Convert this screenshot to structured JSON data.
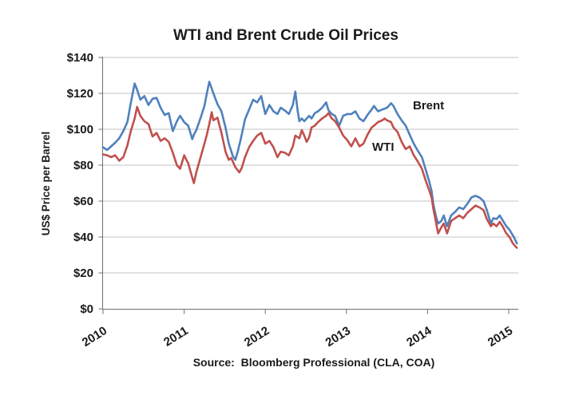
{
  "title": "WTI and Brent Crude Oil Prices",
  "source": "Source:  Bloomberg Professional (CLA, COA)",
  "y_axis": {
    "title": "US$ Price per Barrel"
  },
  "x_axis": {
    "tick_labels": [
      "2010",
      "2011",
      "2012",
      "2013",
      "2014",
      "2015"
    ]
  },
  "series_labels": {
    "brent": "Brent",
    "wti": "WTI"
  },
  "colors": {
    "brent": "#4f81bd",
    "wti": "#c0504d",
    "gridline": "#c3c3c3",
    "axis": "#6f6f6f",
    "text": "#1a1a1a"
  },
  "chart_data": {
    "type": "line",
    "title": "WTI and Brent Crude Oil Prices",
    "xlabel": "",
    "ylabel": "US$ Price per Barrel",
    "ylim": [
      0,
      140
    ],
    "xlim": [
      2010.0,
      2015.12
    ],
    "grid": "horizontal",
    "legend_position": "inline-annotations",
    "y_ticks": [
      {
        "value": 140,
        "label": "$140"
      },
      {
        "value": 120,
        "label": "$120"
      },
      {
        "value": 100,
        "label": "$100"
      },
      {
        "value": 80,
        "label": "$80"
      },
      {
        "value": 60,
        "label": "$60"
      },
      {
        "value": 40,
        "label": "$40"
      },
      {
        "value": 20,
        "label": "$20"
      },
      {
        "value": 0,
        "label": "$0"
      }
    ],
    "x_ticks": [
      {
        "value": 2010,
        "label": "2010"
      },
      {
        "value": 2011,
        "label": "2011"
      },
      {
        "value": 2012,
        "label": "2012"
      },
      {
        "value": 2013,
        "label": "2013"
      },
      {
        "value": 2014,
        "label": "2014"
      },
      {
        "value": 2015,
        "label": "2015"
      }
    ],
    "series": [
      {
        "name": "Brent",
        "color": "#4f81bd",
        "points": [
          [
            2010.0,
            90
          ],
          [
            2010.05,
            88.5
          ],
          [
            2010.1,
            90.5
          ],
          [
            2010.15,
            92.5
          ],
          [
            2010.2,
            95
          ],
          [
            2010.25,
            99
          ],
          [
            2010.3,
            104
          ],
          [
            2010.34,
            114
          ],
          [
            2010.39,
            125.5
          ],
          [
            2010.42,
            122
          ],
          [
            2010.46,
            116.5
          ],
          [
            2010.51,
            118.5
          ],
          [
            2010.56,
            113.5
          ],
          [
            2010.61,
            117
          ],
          [
            2010.66,
            117.5
          ],
          [
            2010.71,
            112
          ],
          [
            2010.76,
            108
          ],
          [
            2010.81,
            109
          ],
          [
            2010.86,
            99
          ],
          [
            2010.91,
            104.5
          ],
          [
            2010.95,
            107.5
          ],
          [
            2011.0,
            104
          ],
          [
            2011.05,
            102
          ],
          [
            2011.1,
            94.5
          ],
          [
            2011.12,
            97
          ],
          [
            2011.15,
            99.5
          ],
          [
            2011.2,
            106
          ],
          [
            2011.25,
            113
          ],
          [
            2011.28,
            120
          ],
          [
            2011.31,
            126.5
          ],
          [
            2011.36,
            120
          ],
          [
            2011.41,
            114
          ],
          [
            2011.46,
            110
          ],
          [
            2011.51,
            101
          ],
          [
            2011.55,
            92
          ],
          [
            2011.6,
            85
          ],
          [
            2011.63,
            83
          ],
          [
            2011.66,
            87.5
          ],
          [
            2011.7,
            95
          ],
          [
            2011.75,
            105.5
          ],
          [
            2011.8,
            111
          ],
          [
            2011.85,
            116.5
          ],
          [
            2011.9,
            115
          ],
          [
            2011.95,
            118.5
          ],
          [
            2012.0,
            108.5
          ],
          [
            2012.05,
            113.5
          ],
          [
            2012.1,
            110
          ],
          [
            2012.15,
            108.5
          ],
          [
            2012.19,
            112
          ],
          [
            2012.24,
            110.5
          ],
          [
            2012.29,
            108.5
          ],
          [
            2012.34,
            113.5
          ],
          [
            2012.37,
            121
          ],
          [
            2012.4,
            110
          ],
          [
            2012.42,
            104.5
          ],
          [
            2012.45,
            106
          ],
          [
            2012.48,
            104.5
          ],
          [
            2012.54,
            107.5
          ],
          [
            2012.57,
            106
          ],
          [
            2012.61,
            109
          ],
          [
            2012.65,
            110
          ],
          [
            2012.7,
            112
          ],
          [
            2012.75,
            115
          ],
          [
            2012.78,
            110.5
          ],
          [
            2012.82,
            108.5
          ],
          [
            2012.86,
            107.5
          ],
          [
            2012.91,
            102
          ],
          [
            2012.96,
            107.5
          ],
          [
            2013.01,
            108.5
          ],
          [
            2013.06,
            108.5
          ],
          [
            2013.11,
            110
          ],
          [
            2013.16,
            106
          ],
          [
            2013.21,
            104.5
          ],
          [
            2013.26,
            108
          ],
          [
            2013.31,
            111
          ],
          [
            2013.34,
            113
          ],
          [
            2013.39,
            110
          ],
          [
            2013.44,
            111
          ],
          [
            2013.5,
            112
          ],
          [
            2013.55,
            114.5
          ],
          [
            2013.58,
            113
          ],
          [
            2013.63,
            108.5
          ],
          [
            2013.68,
            105
          ],
          [
            2013.73,
            102
          ],
          [
            2013.78,
            97
          ],
          [
            2013.83,
            92
          ],
          [
            2013.88,
            88
          ],
          [
            2013.93,
            84.5
          ],
          [
            2013.98,
            77
          ],
          [
            2014.02,
            71
          ],
          [
            2014.05,
            65.5
          ],
          [
            2014.07,
            58.5
          ],
          [
            2014.1,
            52
          ],
          [
            2014.13,
            47.5
          ],
          [
            2014.17,
            49
          ],
          [
            2014.2,
            52
          ],
          [
            2014.24,
            46
          ],
          [
            2014.29,
            52
          ],
          [
            2014.34,
            54
          ],
          [
            2014.39,
            56.5
          ],
          [
            2014.44,
            55.5
          ],
          [
            2014.49,
            58.5
          ],
          [
            2014.54,
            62
          ],
          [
            2014.59,
            63
          ],
          [
            2014.64,
            62
          ],
          [
            2014.69,
            60
          ],
          [
            2014.73,
            55
          ],
          [
            2014.78,
            47.5
          ],
          [
            2014.81,
            50.5
          ],
          [
            2014.85,
            50
          ],
          [
            2014.89,
            52
          ],
          [
            2014.93,
            49
          ],
          [
            2014.97,
            46
          ],
          [
            2015.01,
            44
          ],
          [
            2015.05,
            41
          ],
          [
            2015.08,
            38.5
          ],
          [
            2015.1,
            36.5
          ]
        ]
      },
      {
        "name": "WTI",
        "color": "#c0504d",
        "points": [
          [
            2010.0,
            86
          ],
          [
            2010.05,
            85.5
          ],
          [
            2010.1,
            84.5
          ],
          [
            2010.15,
            85.5
          ],
          [
            2010.2,
            82.5
          ],
          [
            2010.25,
            84.5
          ],
          [
            2010.3,
            91
          ],
          [
            2010.34,
            98.5
          ],
          [
            2010.39,
            106
          ],
          [
            2010.42,
            112.5
          ],
          [
            2010.46,
            107.5
          ],
          [
            2010.51,
            104.5
          ],
          [
            2010.56,
            103
          ],
          [
            2010.61,
            96
          ],
          [
            2010.66,
            98
          ],
          [
            2010.71,
            93.5
          ],
          [
            2010.76,
            95
          ],
          [
            2010.81,
            93
          ],
          [
            2010.86,
            87
          ],
          [
            2010.91,
            80
          ],
          [
            2010.95,
            78
          ],
          [
            2011.0,
            85.5
          ],
          [
            2011.05,
            81
          ],
          [
            2011.1,
            73
          ],
          [
            2011.12,
            70
          ],
          [
            2011.15,
            76
          ],
          [
            2011.2,
            84
          ],
          [
            2011.25,
            92
          ],
          [
            2011.28,
            97
          ],
          [
            2011.31,
            103
          ],
          [
            2011.34,
            109.5
          ],
          [
            2011.36,
            105
          ],
          [
            2011.41,
            106.5
          ],
          [
            2011.46,
            98
          ],
          [
            2011.51,
            87.5
          ],
          [
            2011.55,
            83
          ],
          [
            2011.58,
            84
          ],
          [
            2011.63,
            79
          ],
          [
            2011.68,
            76
          ],
          [
            2011.71,
            78.5
          ],
          [
            2011.75,
            84.5
          ],
          [
            2011.8,
            90
          ],
          [
            2011.85,
            93.5
          ],
          [
            2011.9,
            96.5
          ],
          [
            2011.95,
            98
          ],
          [
            2012.0,
            92
          ],
          [
            2012.05,
            93.5
          ],
          [
            2012.1,
            90
          ],
          [
            2012.15,
            84.5
          ],
          [
            2012.19,
            87.5
          ],
          [
            2012.24,
            87
          ],
          [
            2012.29,
            85.5
          ],
          [
            2012.34,
            90.5
          ],
          [
            2012.37,
            96.5
          ],
          [
            2012.42,
            95
          ],
          [
            2012.45,
            99.5
          ],
          [
            2012.48,
            96.5
          ],
          [
            2012.51,
            93
          ],
          [
            2012.54,
            95.5
          ],
          [
            2012.57,
            101
          ],
          [
            2012.61,
            102
          ],
          [
            2012.65,
            104
          ],
          [
            2012.7,
            106
          ],
          [
            2012.75,
            107.5
          ],
          [
            2012.78,
            109
          ],
          [
            2012.82,
            106
          ],
          [
            2012.86,
            104.5
          ],
          [
            2012.91,
            101
          ],
          [
            2012.96,
            96.5
          ],
          [
            2013.01,
            94
          ],
          [
            2013.06,
            90.5
          ],
          [
            2013.11,
            95
          ],
          [
            2013.16,
            90.5
          ],
          [
            2013.21,
            92
          ],
          [
            2013.26,
            97
          ],
          [
            2013.31,
            101
          ],
          [
            2013.34,
            102
          ],
          [
            2013.39,
            104
          ],
          [
            2013.44,
            105
          ],
          [
            2013.47,
            106
          ],
          [
            2013.5,
            105
          ],
          [
            2013.55,
            104
          ],
          [
            2013.58,
            101
          ],
          [
            2013.63,
            98.5
          ],
          [
            2013.68,
            93
          ],
          [
            2013.73,
            89
          ],
          [
            2013.78,
            90.5
          ],
          [
            2013.83,
            85.5
          ],
          [
            2013.88,
            82
          ],
          [
            2013.93,
            78
          ],
          [
            2013.98,
            71
          ],
          [
            2014.02,
            66
          ],
          [
            2014.05,
            62
          ],
          [
            2014.07,
            56
          ],
          [
            2014.1,
            49
          ],
          [
            2014.13,
            42
          ],
          [
            2014.17,
            45.5
          ],
          [
            2014.2,
            47.5
          ],
          [
            2014.24,
            42
          ],
          [
            2014.29,
            49
          ],
          [
            2014.34,
            50.5
          ],
          [
            2014.39,
            52
          ],
          [
            2014.44,
            50.5
          ],
          [
            2014.49,
            53.5
          ],
          [
            2014.54,
            55.5
          ],
          [
            2014.59,
            57.5
          ],
          [
            2014.64,
            56.5
          ],
          [
            2014.69,
            55
          ],
          [
            2014.73,
            50
          ],
          [
            2014.78,
            46
          ],
          [
            2014.81,
            47.5
          ],
          [
            2014.85,
            46
          ],
          [
            2014.89,
            48.5
          ],
          [
            2014.93,
            45.5
          ],
          [
            2014.97,
            42
          ],
          [
            2015.01,
            40
          ],
          [
            2015.05,
            36.5
          ],
          [
            2015.08,
            35
          ],
          [
            2015.1,
            34
          ]
        ]
      }
    ],
    "annotations": [
      {
        "text": "Brent",
        "color": "#4f81bd",
        "near_x": 2013.8,
        "near_y": 112
      },
      {
        "text": "WTI",
        "color": "#c0504d",
        "near_x": 2013.3,
        "near_y": 89
      }
    ]
  }
}
